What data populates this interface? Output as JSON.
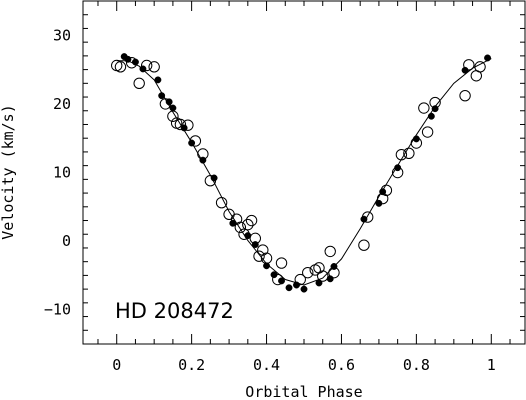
{
  "chart_data": {
    "type": "scatter",
    "title": "",
    "annotation": "HD 208472",
    "xlabel": "Orbital Phase",
    "ylabel": "Velocity (km/s)",
    "xlim": [
      -0.09,
      1.09
    ],
    "ylim": [
      -15,
      35
    ],
    "xticks": [
      0,
      0.2,
      0.4,
      0.6,
      0.8,
      1
    ],
    "xtick_labels": [
      "0",
      "0.2",
      "0.4",
      "0.6",
      "0.8",
      "1"
    ],
    "yticks": [
      -10,
      0,
      10,
      20,
      30
    ],
    "ytick_labels": [
      "−10",
      "0",
      "10",
      "20",
      "30"
    ],
    "grid": false,
    "series": [
      {
        "marker": "open-circle",
        "points": [
          [
            0.0,
            25.6
          ],
          [
            0.01,
            25.4
          ],
          [
            0.04,
            26.0
          ],
          [
            0.06,
            23.0
          ],
          [
            0.08,
            25.6
          ],
          [
            0.1,
            25.4
          ],
          [
            0.13,
            20.0
          ],
          [
            0.15,
            18.2
          ],
          [
            0.16,
            17.2
          ],
          [
            0.17,
            17.0
          ],
          [
            0.19,
            16.9
          ],
          [
            0.21,
            14.6
          ],
          [
            0.23,
            12.7
          ],
          [
            0.25,
            8.8
          ],
          [
            0.28,
            5.6
          ],
          [
            0.3,
            3.9
          ],
          [
            0.32,
            3.2
          ],
          [
            0.33,
            2.0
          ],
          [
            0.34,
            1.0
          ],
          [
            0.35,
            2.4
          ],
          [
            0.36,
            3.0
          ],
          [
            0.37,
            0.4
          ],
          [
            0.38,
            -2.2
          ],
          [
            0.39,
            -1.3
          ],
          [
            0.4,
            -2.5
          ],
          [
            0.43,
            -5.6
          ],
          [
            0.44,
            -3.2
          ],
          [
            0.49,
            -5.6
          ],
          [
            0.51,
            -4.6
          ],
          [
            0.53,
            -4.2
          ],
          [
            0.54,
            -3.9
          ],
          [
            0.55,
            -5.1
          ],
          [
            0.57,
            -1.5
          ],
          [
            0.58,
            -4.6
          ],
          [
            0.66,
            -0.6
          ],
          [
            0.67,
            3.5
          ],
          [
            0.71,
            6.2
          ],
          [
            0.72,
            7.4
          ],
          [
            0.75,
            10.0
          ],
          [
            0.76,
            12.6
          ],
          [
            0.78,
            12.8
          ],
          [
            0.8,
            14.3
          ],
          [
            0.82,
            19.4
          ],
          [
            0.83,
            15.9
          ],
          [
            0.85,
            20.2
          ],
          [
            0.93,
            21.2
          ],
          [
            0.94,
            25.7
          ],
          [
            0.96,
            24.1
          ],
          [
            0.97,
            25.4
          ]
        ]
      },
      {
        "marker": "filled-circle",
        "points": [
          [
            0.02,
            26.9
          ],
          [
            0.03,
            26.5
          ],
          [
            0.05,
            26.1
          ],
          [
            0.07,
            25.1
          ],
          [
            0.11,
            23.5
          ],
          [
            0.12,
            21.2
          ],
          [
            0.14,
            20.3
          ],
          [
            0.15,
            19.4
          ],
          [
            0.18,
            16.5
          ],
          [
            0.2,
            14.3
          ],
          [
            0.23,
            11.8
          ],
          [
            0.26,
            9.2
          ],
          [
            0.31,
            2.6
          ],
          [
            0.35,
            0.8
          ],
          [
            0.37,
            -0.5
          ],
          [
            0.4,
            -3.6
          ],
          [
            0.42,
            -4.9
          ],
          [
            0.44,
            -5.8
          ],
          [
            0.46,
            -6.8
          ],
          [
            0.48,
            -6.4
          ],
          [
            0.5,
            -7.0
          ],
          [
            0.54,
            -6.1
          ],
          [
            0.57,
            -5.5
          ],
          [
            0.58,
            -3.7
          ],
          [
            0.66,
            3.2
          ],
          [
            0.7,
            5.5
          ],
          [
            0.71,
            7.2
          ],
          [
            0.75,
            10.7
          ],
          [
            0.8,
            14.9
          ],
          [
            0.84,
            18.2
          ],
          [
            0.85,
            19.3
          ],
          [
            0.93,
            24.9
          ],
          [
            0.99,
            26.7
          ]
        ]
      },
      {
        "marker": "line",
        "points": [
          [
            0.0,
            26.3
          ],
          [
            0.03,
            26.3
          ],
          [
            0.06,
            25.5
          ],
          [
            0.1,
            23.5
          ],
          [
            0.15,
            18.8
          ],
          [
            0.2,
            14.4
          ],
          [
            0.25,
            9.6
          ],
          [
            0.3,
            4.3
          ],
          [
            0.35,
            0.1
          ],
          [
            0.4,
            -3.3
          ],
          [
            0.45,
            -5.6
          ],
          [
            0.5,
            -6.4
          ],
          [
            0.55,
            -5.4
          ],
          [
            0.6,
            -2.6
          ],
          [
            0.65,
            1.8
          ],
          [
            0.7,
            6.5
          ],
          [
            0.75,
            11.0
          ],
          [
            0.8,
            15.5
          ],
          [
            0.85,
            19.6
          ],
          [
            0.9,
            23.0
          ],
          [
            0.95,
            25.2
          ],
          [
            1.0,
            26.6
          ]
        ]
      }
    ]
  }
}
